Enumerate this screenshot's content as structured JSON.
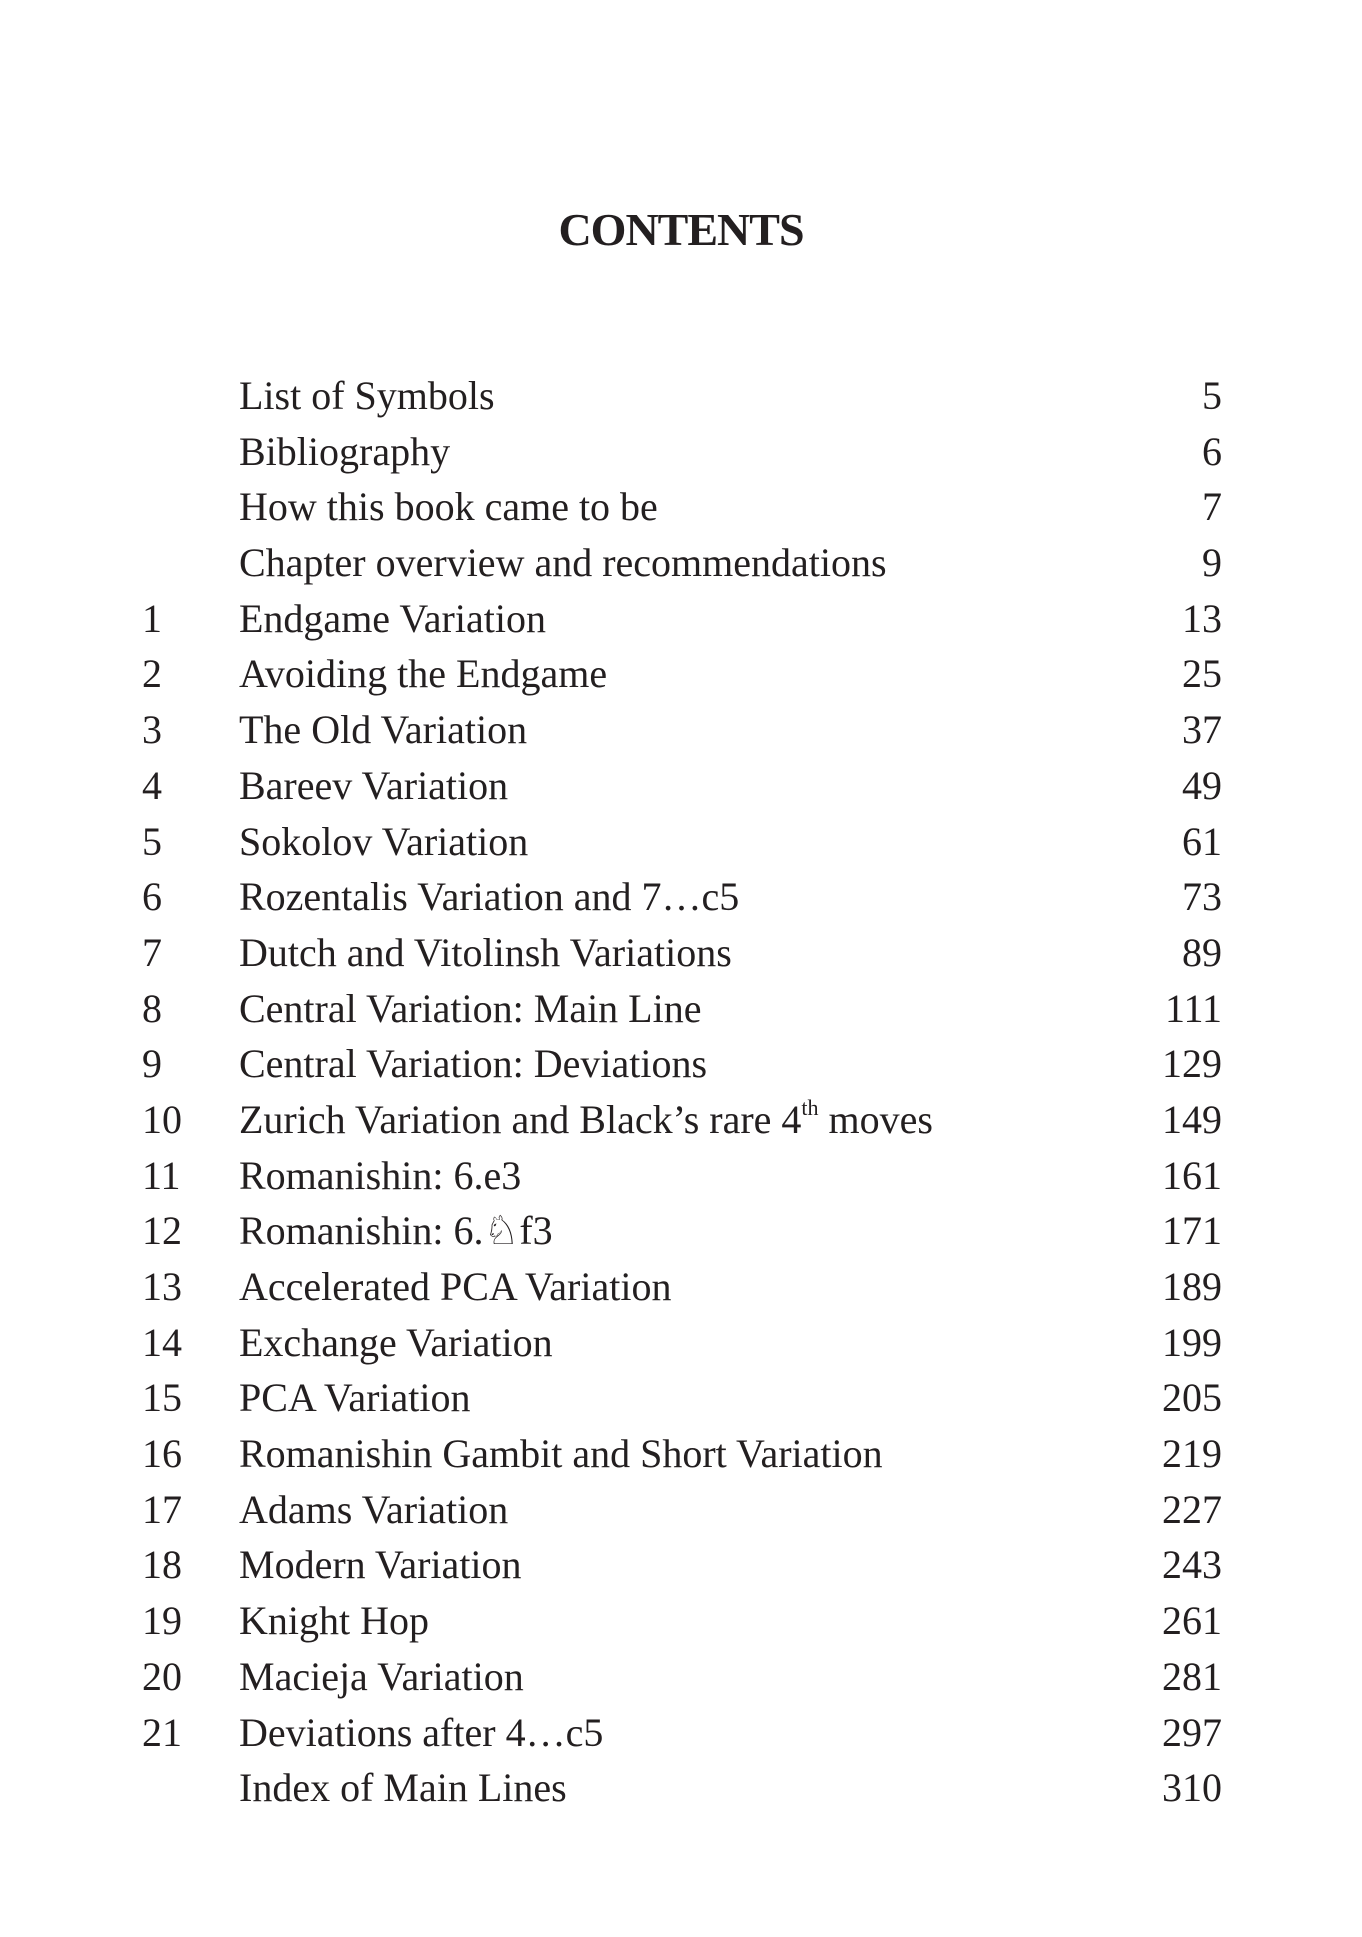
{
  "title": "CONTENTS",
  "entries": [
    {
      "num": "",
      "label": "List of Symbols",
      "page": "5"
    },
    {
      "num": "",
      "label": "Bibliography",
      "page": "6"
    },
    {
      "num": "",
      "label": "How this book came to be",
      "page": "7"
    },
    {
      "num": "",
      "label": "Chapter overview and recommendations",
      "page": "9"
    },
    {
      "num": "1",
      "label": "Endgame Variation",
      "page": "13"
    },
    {
      "num": "2",
      "label": "Avoiding the Endgame",
      "page": "25"
    },
    {
      "num": "3",
      "label": "The Old Variation",
      "page": "37"
    },
    {
      "num": "4",
      "label": "Bareev Variation",
      "page": "49"
    },
    {
      "num": "5",
      "label": "Sokolov Variation",
      "page": "61"
    },
    {
      "num": "6",
      "label": "Rozentalis Variation and 7…c5",
      "page": "73"
    },
    {
      "num": "7",
      "label": "Dutch and Vitolinsh Variations",
      "page": "89"
    },
    {
      "num": "8",
      "label": "Central Variation: Main Line",
      "page": "111"
    },
    {
      "num": "9",
      "label": "Central Variation: Deviations",
      "page": "129"
    },
    {
      "num": "10",
      "label": "Zurich Variation and Black’s rare 4",
      "label_sup": "th",
      "label_tail": " moves",
      "page": "149"
    },
    {
      "num": "11",
      "label": "Romanishin: 6.e3",
      "page": "161"
    },
    {
      "num": "12",
      "label": "Romanishin: 6.♘f3",
      "page": "171"
    },
    {
      "num": "13",
      "label": "Accelerated PCA Variation",
      "page": "189"
    },
    {
      "num": "14",
      "label": "Exchange Variation",
      "page": "199"
    },
    {
      "num": "15",
      "label": "PCA Variation",
      "page": "205"
    },
    {
      "num": "16",
      "label": "Romanishin Gambit and Short Variation",
      "page": "219"
    },
    {
      "num": "17",
      "label": "Adams Variation",
      "page": "227"
    },
    {
      "num": "18",
      "label": "Modern Variation",
      "page": "243"
    },
    {
      "num": "19",
      "label": "Knight Hop",
      "page": "261"
    },
    {
      "num": "20",
      "label": "Macieja Variation",
      "page": "281"
    },
    {
      "num": "21",
      "label": "Deviations after 4…c5",
      "page": "297"
    },
    {
      "num": "",
      "label": "Index of Main Lines",
      "page": "310"
    }
  ]
}
